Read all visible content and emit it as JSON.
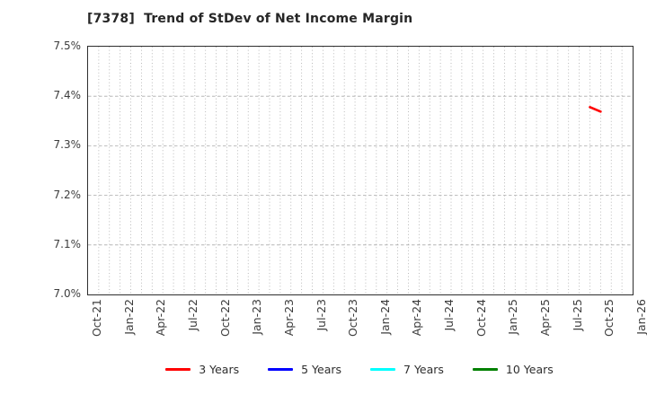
{
  "window": {
    "title": "[7378]  Trend of StDev of Net Income Margin"
  },
  "chart_data": {
    "type": "line",
    "title": "[7378]  Trend of StDev of Net Income Margin",
    "xlabel": "",
    "ylabel": "",
    "y_unit": "%",
    "ylim": [
      7.0,
      7.5
    ],
    "grid": "on",
    "y_ticks": [
      {
        "label": "7.5%",
        "value": 7.5
      },
      {
        "label": "7.4%",
        "value": 7.4
      },
      {
        "label": "7.3%",
        "value": 7.3
      },
      {
        "label": "7.2%",
        "value": 7.2
      },
      {
        "label": "7.1%",
        "value": 7.1
      },
      {
        "label": "7.0%",
        "value": 7.0
      }
    ],
    "y_gridlines": [
      7.1,
      7.2,
      7.3,
      7.4
    ],
    "x_axis": {
      "start_month": "Oct-21",
      "end_month": "Jan-26",
      "months_total": 51,
      "minor_gridline_every_months": 1
    },
    "x_ticks": [
      {
        "label": "Oct-21",
        "month_index": 0
      },
      {
        "label": "Jan-22",
        "month_index": 3
      },
      {
        "label": "Apr-22",
        "month_index": 6
      },
      {
        "label": "Jul-22",
        "month_index": 9
      },
      {
        "label": "Oct-22",
        "month_index": 12
      },
      {
        "label": "Jan-23",
        "month_index": 15
      },
      {
        "label": "Apr-23",
        "month_index": 18
      },
      {
        "label": "Jul-23",
        "month_index": 21
      },
      {
        "label": "Oct-23",
        "month_index": 24
      },
      {
        "label": "Jan-24",
        "month_index": 27
      },
      {
        "label": "Apr-24",
        "month_index": 30
      },
      {
        "label": "Jul-24",
        "month_index": 33
      },
      {
        "label": "Oct-24",
        "month_index": 36
      },
      {
        "label": "Jan-25",
        "month_index": 39
      },
      {
        "label": "Apr-25",
        "month_index": 42
      },
      {
        "label": "Jul-25",
        "month_index": 45
      },
      {
        "label": "Oct-25",
        "month_index": 48
      },
      {
        "label": "Jan-26",
        "month_index": 51
      }
    ],
    "series": [
      {
        "name": "3 Years",
        "color": "#ff0000",
        "points": [
          {
            "month": "Sep-25",
            "month_index": 47,
            "value": 7.378
          },
          {
            "month": "Oct-25",
            "month_index": 48,
            "value": 7.369
          }
        ]
      },
      {
        "name": "5 Years",
        "color": "#0000ff",
        "points": []
      },
      {
        "name": "7 Years",
        "color": "#00ffff",
        "points": []
      },
      {
        "name": "10 Years",
        "color": "#008000",
        "points": []
      }
    ],
    "legend": {
      "position": "bottom-center",
      "entries": [
        "3 Years",
        "5 Years",
        "7 Years",
        "10 Years"
      ]
    },
    "colors": {
      "background": "#ffffff",
      "spine": "#2e2e2e",
      "gridline": "#aaaaaa",
      "title_text": "#262626",
      "tick_text": "#3d3d3d"
    }
  }
}
